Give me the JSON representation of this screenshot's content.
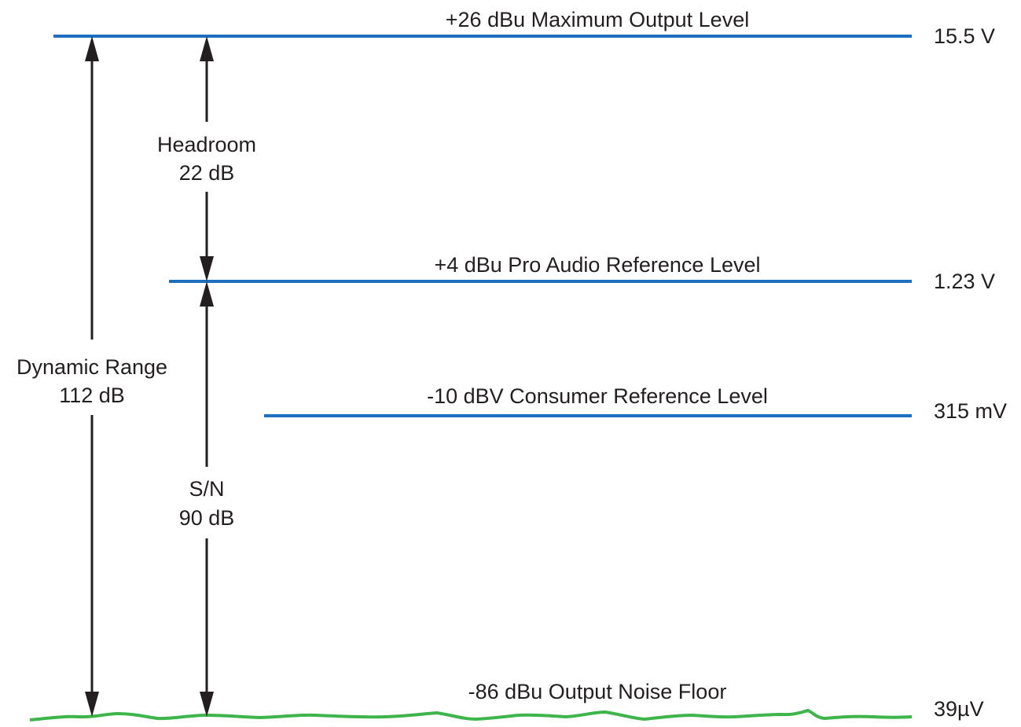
{
  "colors": {
    "level_line": "#1f6fc0",
    "noise_floor": "#3db54a",
    "arrow": "#231f20",
    "text": "#231f20"
  },
  "levels": {
    "max_output": {
      "label": "+26 dBu Maximum Output Level",
      "voltage": "15.5 V"
    },
    "pro_ref": {
      "label": "+4 dBu Pro Audio Reference Level",
      "voltage": "1.23 V"
    },
    "consumer_ref": {
      "label": "-10 dBV Consumer Reference Level",
      "voltage": "315 mV"
    },
    "noise_floor": {
      "label": "-86 dBu Output Noise Floor",
      "voltage": "39µV"
    }
  },
  "spans": {
    "dynamic_range": {
      "name": "Dynamic Range",
      "value": "112 dB"
    },
    "headroom": {
      "name": "Headroom",
      "value": "22 dB"
    },
    "sn": {
      "name": "S/N",
      "value": "90 dB"
    }
  }
}
